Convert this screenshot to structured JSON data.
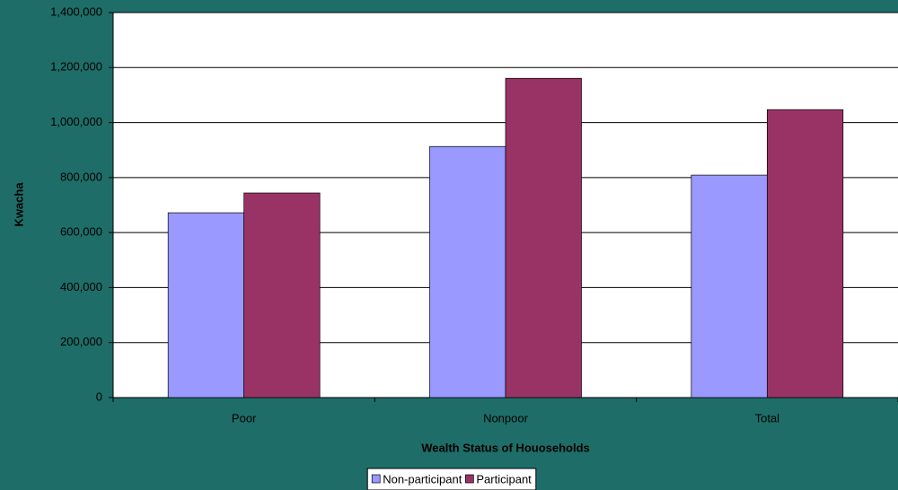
{
  "chart_data": {
    "type": "bar",
    "x_label": "Wealth Status of Houoseholds",
    "y_label": "Kwacha",
    "categories": [
      "Poor",
      "Nonpoor",
      "Total"
    ],
    "series": [
      {
        "name": "Non-participant",
        "color": "#9999ff",
        "values": [
          672000,
          913000,
          809000
        ]
      },
      {
        "name": "Participant",
        "color": "#993366",
        "values": [
          744000,
          1161000,
          1047000
        ]
      }
    ],
    "ylim": [
      0,
      1400000
    ],
    "yticks": [
      0,
      {
        "value": 200000,
        "label": "200,000"
      },
      {
        "value": 400000,
        "label": "400,000"
      },
      {
        "value": 600000,
        "label": "600,000"
      },
      {
        "value": 800000,
        "label": "800,000"
      },
      {
        "value": 1000000,
        "label": "1,000,000"
      },
      {
        "value": 1200000,
        "label": "1,200,000"
      },
      {
        "value": 1400000,
        "label": "1,400,000"
      }
    ],
    "grid": true,
    "legend": "bottom"
  }
}
